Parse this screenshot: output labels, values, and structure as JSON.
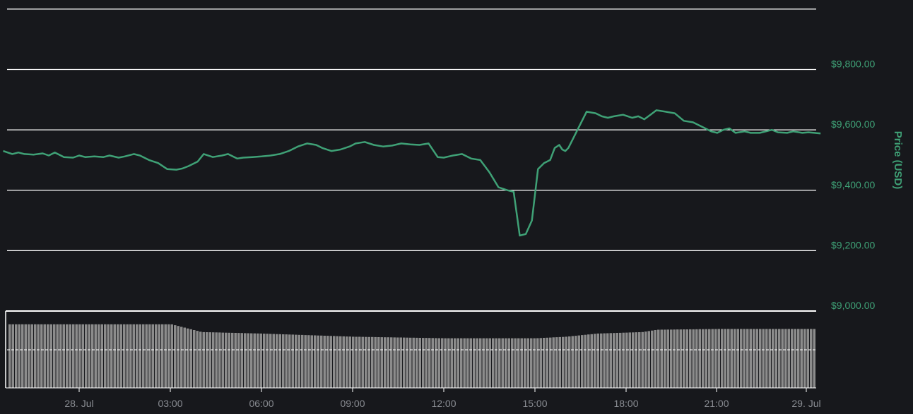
{
  "chart_data": {
    "type": "line",
    "title": "",
    "xlabel": "",
    "ylabel": "Price (USD)",
    "x_tick_labels": [
      "28. Jul",
      "03:00",
      "06:00",
      "09:00",
      "12:00",
      "15:00",
      "18:00",
      "21:00",
      "29. Jul"
    ],
    "y_tick_labels": [
      "$9,800.00",
      "$9,600.00",
      "$9,400.00",
      "$9,200.00",
      "$9,000.00"
    ],
    "y_ticks": [
      9800,
      9600,
      9400,
      9200,
      9000
    ],
    "ylim": [
      9000,
      10000
    ],
    "x_hours_range": [
      -2.5,
      24.4
    ],
    "grid": true,
    "colors": {
      "line": "#3fa176",
      "volume": "#8c8c8c",
      "grid": "#ffffff",
      "background": "#17181c"
    },
    "series": [
      {
        "type": "line",
        "x_hours": [
          -2.5,
          -2.2,
          -2.0,
          -1.8,
          -1.5,
          -1.2,
          -1.0,
          -0.8,
          -0.5,
          -0.2,
          0.0,
          0.2,
          0.5,
          0.8,
          1.0,
          1.3,
          1.5,
          1.8,
          2.0,
          2.3,
          2.6,
          2.9,
          3.2,
          3.4,
          3.6,
          3.9,
          4.1,
          4.4,
          4.7,
          4.9,
          5.2,
          5.4,
          5.7,
          6.0,
          6.3,
          6.6,
          6.9,
          7.2,
          7.5,
          7.8,
          8.0,
          8.3,
          8.6,
          8.9,
          9.1,
          9.4,
          9.7,
          10.0,
          10.3,
          10.6,
          10.9,
          11.2,
          11.5,
          11.8,
          12.0,
          12.3,
          12.6,
          12.9,
          13.2,
          13.5,
          13.8,
          14.1,
          14.3,
          14.5,
          14.7,
          14.9,
          15.1,
          15.3,
          15.5,
          15.65,
          15.8,
          15.9,
          16.0,
          16.1,
          16.3,
          16.5,
          16.7,
          17.0,
          17.2,
          17.4,
          17.6,
          17.9,
          18.2,
          18.4,
          18.6,
          18.8,
          19.0,
          19.3,
          19.6,
          19.9,
          20.2,
          20.5,
          20.8,
          21.0,
          21.2,
          21.4,
          21.6,
          21.9,
          22.1,
          22.4,
          22.6,
          22.8,
          23.0,
          23.3,
          23.5,
          23.8,
          24.0,
          24.2,
          24.4
        ],
        "values": [
          9530,
          9520,
          9525,
          9520,
          9518,
          9522,
          9515,
          9525,
          9510,
          9508,
          9515,
          9510,
          9512,
          9510,
          9515,
          9508,
          9512,
          9520,
          9515,
          9500,
          9490,
          9470,
          9468,
          9472,
          9480,
          9495,
          9520,
          9510,
          9515,
          9520,
          9505,
          9508,
          9510,
          9512,
          9515,
          9520,
          9530,
          9545,
          9555,
          9550,
          9540,
          9530,
          9535,
          9545,
          9555,
          9560,
          9550,
          9545,
          9548,
          9555,
          9552,
          9550,
          9555,
          9510,
          9508,
          9515,
          9520,
          9505,
          9500,
          9460,
          9410,
          9400,
          9395,
          9250,
          9255,
          9300,
          9470,
          9490,
          9500,
          9540,
          9550,
          9535,
          9530,
          9540,
          9580,
          9620,
          9660,
          9655,
          9645,
          9640,
          9645,
          9650,
          9640,
          9645,
          9635,
          9650,
          9665,
          9660,
          9655,
          9630,
          9625,
          9610,
          9595,
          9590,
          9600,
          9605,
          9590,
          9595,
          9590,
          9590,
          9595,
          9600,
          9592,
          9590,
          9595,
          9590,
          9592,
          9590,
          9588
        ]
      },
      {
        "name": "Volume",
        "type": "bar",
        "anchor_hours": [
          -2.5,
          0.0,
          3.0,
          4.0,
          6.0,
          9.0,
          12.0,
          15.0,
          16.0,
          17.0,
          18.5,
          19.0,
          21.0,
          24.4
        ],
        "anchor_levels": [
          0.82,
          0.82,
          0.82,
          0.72,
          0.7,
          0.66,
          0.64,
          0.64,
          0.66,
          0.7,
          0.72,
          0.75,
          0.76,
          0.76
        ]
      }
    ]
  }
}
